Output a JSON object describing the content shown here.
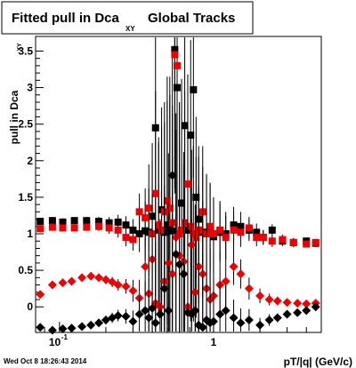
{
  "title": {
    "main": "Fitted pull in Dca",
    "subscript": "XY",
    "suffix": "Global Tracks"
  },
  "timestamp": "Wed Oct  8 18:26:43 2014",
  "chart_data": {
    "type": "scatter",
    "xlabel": "pT/|q| (GeV/c)",
    "ylabel_main": "pull in Dca",
    "ylabel_subscript": "XY",
    "x_scale": "log",
    "xlim": [
      0.07,
      5.0
    ],
    "ylim": [
      -0.35,
      3.7
    ],
    "x_tick_labels": [
      {
        "value": 0.1,
        "base": "10",
        "exp": "-1"
      },
      {
        "value": 1,
        "base": "1",
        "exp": ""
      }
    ],
    "y_ticks": [
      0,
      0.5,
      1,
      1.5,
      2,
      2.5,
      3,
      3.5
    ],
    "y_tick_labels": [
      "0",
      "0.5",
      "1",
      "1.5",
      "2",
      "2.5",
      "3",
      "3.5"
    ],
    "colors": {
      "black": "#000000",
      "red": "#ee0000"
    },
    "series": [
      {
        "color": "black",
        "marker": "square",
        "x": [
          0.075,
          0.09,
          0.105,
          0.125,
          0.15,
          0.18,
          0.21,
          0.24,
          0.27,
          0.3,
          0.33,
          0.36,
          0.38,
          0.4,
          0.42,
          0.44,
          0.46,
          0.48,
          0.5,
          0.52,
          0.54,
          0.56,
          0.58,
          0.6,
          0.62,
          0.65,
          0.68,
          0.71,
          0.74,
          0.77,
          0.8,
          0.85,
          0.9,
          0.95,
          1.0,
          1.1,
          1.2,
          1.35,
          1.5,
          1.7,
          1.9,
          2.1,
          2.4,
          2.8,
          3.3,
          4.0,
          4.6
        ],
        "y": [
          1.17,
          1.18,
          1.16,
          1.18,
          1.18,
          1.17,
          1.15,
          1.16,
          1.12,
          1.05,
          1.0,
          1.04,
          1.02,
          1.24,
          2.45,
          1.05,
          1.33,
          1.02,
          1.12,
          1.1,
          1.04,
          3.52,
          3.0,
          1.0,
          1.42,
          2.48,
          1.05,
          2.35,
          2.97,
          1.5,
          1.2,
          1.02,
          1.02,
          1.08,
          0.96,
          1.02,
          1.0,
          1.12,
          1.1,
          1.05,
          1.02,
          0.95,
          1.05,
          0.9,
          0.88,
          0.9,
          0.87
        ],
        "err": [
          0.05,
          0.05,
          0.05,
          0.05,
          0.05,
          0.06,
          0.08,
          0.1,
          0.12,
          0.15,
          0.25,
          0.4,
          0.6,
          1.0,
          1.4,
          1.2,
          1.4,
          1.5,
          1.7,
          1.8,
          1.6,
          1.9,
          2.0,
          1.8,
          1.7,
          1.8,
          1.5,
          1.3,
          1.2,
          1.1,
          1.0,
          0.9,
          0.8,
          0.6,
          0.5,
          0.4,
          0.3,
          0.25,
          0.2,
          0.15,
          0.12,
          0.1,
          0.08,
          0.07,
          0.06,
          0.05,
          0.05
        ]
      },
      {
        "color": "red",
        "marker": "square",
        "x": [
          0.075,
          0.09,
          0.105,
          0.125,
          0.15,
          0.18,
          0.21,
          0.24,
          0.27,
          0.3,
          0.33,
          0.36,
          0.38,
          0.4,
          0.42,
          0.44,
          0.46,
          0.48,
          0.5,
          0.52,
          0.54,
          0.56,
          0.58,
          0.6,
          0.62,
          0.65,
          0.68,
          0.71,
          0.74,
          0.77,
          0.8,
          0.85,
          0.9,
          0.95,
          1.0,
          1.1,
          1.2,
          1.35,
          1.5,
          1.7,
          1.9,
          2.1,
          2.4,
          2.8,
          3.3,
          4.0,
          4.6
        ],
        "y": [
          1.07,
          1.09,
          1.08,
          1.08,
          1.09,
          1.1,
          1.08,
          1.05,
          0.95,
          0.92,
          1.3,
          1.22,
          1.35,
          1.0,
          1.55,
          1.12,
          1.05,
          1.3,
          1.45,
          1.35,
          1.15,
          3.45,
          3.3,
          1.0,
          1.05,
          1.15,
          1.68,
          1.1,
          1.0,
          0.95,
          1.05,
          1.3,
          1.0,
          1.1,
          1.0,
          1.05,
          0.95,
          1.05,
          1.02,
          1.08,
          0.95,
          0.95,
          0.9,
          0.92,
          0.88,
          0.86,
          0.88
        ],
        "err": [
          0.05,
          0.05,
          0.05,
          0.05,
          0.05,
          0.06,
          0.08,
          0.1,
          0.12,
          0.15,
          0.25,
          0.4,
          0.6,
          1.0,
          1.4,
          1.2,
          1.4,
          1.5,
          1.7,
          1.8,
          1.6,
          1.9,
          2.0,
          1.8,
          1.7,
          1.8,
          1.5,
          1.3,
          1.2,
          1.1,
          1.0,
          0.9,
          0.8,
          0.6,
          0.5,
          0.4,
          0.3,
          0.25,
          0.2,
          0.15,
          0.12,
          0.1,
          0.08,
          0.07,
          0.06,
          0.05,
          0.05
        ]
      },
      {
        "color": "red",
        "marker": "diamond",
        "x": [
          0.075,
          0.09,
          0.105,
          0.12,
          0.14,
          0.16,
          0.18,
          0.2,
          0.22,
          0.24,
          0.27,
          0.3,
          0.33,
          0.36,
          0.38,
          0.4,
          0.42,
          0.45,
          0.48,
          0.51,
          0.54,
          0.57,
          0.6,
          0.64,
          0.68,
          0.72,
          0.76,
          0.8,
          0.85,
          0.9,
          0.95,
          1.0,
          1.1,
          1.2,
          1.35,
          1.5,
          1.7,
          2.0,
          2.3,
          2.6,
          3.0,
          3.5,
          4.0,
          4.6
        ],
        "y": [
          0.17,
          0.3,
          0.33,
          0.35,
          0.4,
          0.42,
          0.4,
          0.37,
          0.34,
          0.3,
          0.28,
          0.22,
          0.12,
          0.55,
          0.18,
          0.65,
          0.05,
          0.0,
          0.35,
          0.6,
          0.45,
          0.95,
          0.7,
          0.62,
          0.0,
          0.85,
          0.2,
          0.55,
          0.45,
          0.25,
          0.1,
          0.15,
          0.3,
          0.35,
          0.55,
          0.45,
          0.25,
          0.15,
          0.1,
          0.08,
          0.06,
          0.05,
          0.04,
          0.05
        ],
        "err": [
          0.03,
          0.03,
          0.03,
          0.03,
          0.03,
          0.04,
          0.05,
          0.06,
          0.07,
          0.08,
          0.1,
          0.15,
          0.25,
          0.4,
          0.55,
          0.9,
          1.1,
          1.2,
          1.3,
          1.5,
          1.6,
          1.7,
          1.6,
          1.5,
          1.4,
          1.3,
          1.2,
          1.1,
          1.0,
          0.9,
          0.7,
          0.6,
          0.45,
          0.35,
          0.25,
          0.2,
          0.15,
          0.1,
          0.08,
          0.06,
          0.05,
          0.04,
          0.04,
          0.04
        ]
      },
      {
        "color": "black",
        "marker": "diamond",
        "x": [
          0.075,
          0.09,
          0.105,
          0.12,
          0.14,
          0.16,
          0.18,
          0.2,
          0.22,
          0.24,
          0.27,
          0.3,
          0.33,
          0.36,
          0.38,
          0.4,
          0.42,
          0.45,
          0.48,
          0.51,
          0.54,
          0.57,
          0.6,
          0.64,
          0.68,
          0.72,
          0.76,
          0.8,
          0.85,
          0.9,
          0.95,
          1.0,
          1.1,
          1.2,
          1.35,
          1.5,
          1.7,
          2.0,
          2.3,
          2.6,
          3.0,
          3.5,
          4.0,
          4.6
        ],
        "y": [
          -0.28,
          -0.32,
          -0.3,
          -0.29,
          -0.27,
          -0.25,
          -0.22,
          -0.18,
          -0.15,
          -0.12,
          -0.13,
          -0.2,
          -0.1,
          -0.05,
          -0.15,
          -0.02,
          -0.22,
          -0.1,
          0.25,
          -0.05,
          1.8,
          0.72,
          0.58,
          0.45,
          -0.08,
          -0.1,
          -0.05,
          -0.25,
          -0.28,
          -0.18,
          -0.22,
          -0.2,
          -0.1,
          -0.05,
          -0.15,
          -0.22,
          -0.18,
          -0.25,
          -0.18,
          -0.15,
          -0.1,
          -0.08,
          -0.05,
          0.0
        ],
        "err": [
          0.03,
          0.03,
          0.03,
          0.03,
          0.03,
          0.04,
          0.05,
          0.06,
          0.07,
          0.08,
          0.1,
          0.15,
          0.25,
          0.4,
          0.55,
          0.9,
          1.1,
          1.2,
          1.3,
          1.5,
          1.6,
          1.7,
          1.6,
          1.5,
          1.4,
          1.3,
          1.2,
          1.1,
          1.0,
          0.9,
          0.7,
          0.6,
          0.45,
          0.35,
          0.25,
          0.2,
          0.15,
          0.1,
          0.08,
          0.06,
          0.05,
          0.04,
          0.04,
          0.04
        ]
      }
    ]
  }
}
